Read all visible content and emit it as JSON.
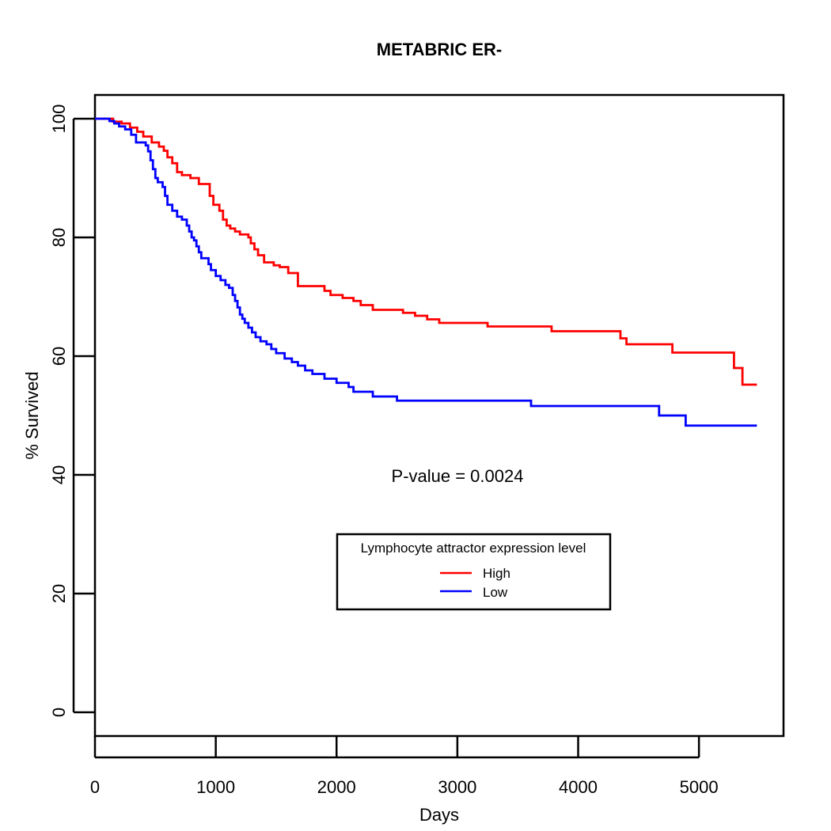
{
  "chart_data": {
    "type": "line",
    "title": "METABRIC ER-",
    "xlabel": "Days",
    "ylabel": "% Survived",
    "xlim": [
      0,
      5700
    ],
    "ylim": [
      -4,
      104
    ],
    "x_ticks": [
      0,
      1000,
      2000,
      3000,
      4000,
      5000
    ],
    "y_ticks": [
      0,
      20,
      40,
      60,
      80,
      100
    ],
    "grid": false,
    "legend_position": "center-bottom",
    "annotation": "P-value =  0.0024",
    "legend_title": "Lymphocyte attractor expression level",
    "series": [
      {
        "name": "High",
        "color": "#ff0000",
        "x": [
          0,
          150,
          220,
          290,
          350,
          400,
          470,
          530,
          570,
          600,
          640,
          680,
          720,
          790,
          860,
          950,
          980,
          1030,
          1060,
          1090,
          1120,
          1160,
          1200,
          1270,
          1290,
          1320,
          1350,
          1400,
          1480,
          1530,
          1600,
          1680,
          1900,
          1950,
          2050,
          2140,
          2200,
          2300,
          2550,
          2650,
          2750,
          2850,
          3000,
          3250,
          3500,
          3780,
          4000,
          4350,
          4400,
          4500,
          4780,
          4900,
          5000,
          5290,
          5360,
          5480
        ],
        "y": [
          100,
          99.5,
          99.2,
          98.5,
          97.8,
          97.0,
          96.0,
          95.3,
          94.6,
          93.5,
          92.5,
          91.0,
          90.5,
          90.0,
          89.0,
          87.0,
          85.5,
          84.5,
          83.0,
          82.0,
          81.5,
          81.0,
          80.5,
          80.0,
          79.0,
          78.0,
          77.0,
          75.8,
          75.3,
          75.0,
          74.0,
          71.8,
          71.0,
          70.3,
          69.8,
          69.3,
          68.6,
          67.8,
          67.3,
          66.8,
          66.2,
          65.6,
          65.6,
          65.0,
          65.0,
          64.2,
          64.2,
          63.0,
          62.0,
          62.0,
          60.6,
          60.6,
          60.6,
          58.0,
          55.2,
          55.2
        ]
      },
      {
        "name": "Low",
        "color": "#0000ff",
        "x": [
          0,
          120,
          160,
          200,
          250,
          300,
          340,
          420,
          440,
          460,
          480,
          500,
          520,
          560,
          580,
          600,
          640,
          680,
          720,
          760,
          780,
          800,
          820,
          840,
          860,
          880,
          940,
          960,
          1000,
          1040,
          1080,
          1110,
          1140,
          1160,
          1180,
          1200,
          1220,
          1240,
          1270,
          1300,
          1330,
          1370,
          1420,
          1460,
          1500,
          1570,
          1630,
          1680,
          1740,
          1800,
          1900,
          2000,
          2100,
          2140,
          2300,
          2500,
          2800,
          3000,
          3300,
          3610,
          3800,
          4000,
          4400,
          4670,
          4890,
          5000,
          5480
        ],
        "y": [
          100,
          99.6,
          99.2,
          98.7,
          98.2,
          97.3,
          96.0,
          95.5,
          94.5,
          93.0,
          91.5,
          90.0,
          89.3,
          88.5,
          87.0,
          85.5,
          84.5,
          83.5,
          83.0,
          82.0,
          81.0,
          80.0,
          79.5,
          78.5,
          77.5,
          76.5,
          75.5,
          74.5,
          73.5,
          72.8,
          72.0,
          71.5,
          70.3,
          69.3,
          68.2,
          67.0,
          66.3,
          65.6,
          64.8,
          64.0,
          63.2,
          62.5,
          62.0,
          61.2,
          60.5,
          59.6,
          59.0,
          58.4,
          57.6,
          57.0,
          56.2,
          55.5,
          54.8,
          54.0,
          53.2,
          52.5,
          52.5,
          52.5,
          52.5,
          51.6,
          51.6,
          51.6,
          51.6,
          50.0,
          48.3,
          48.3,
          48.3
        ]
      }
    ]
  }
}
